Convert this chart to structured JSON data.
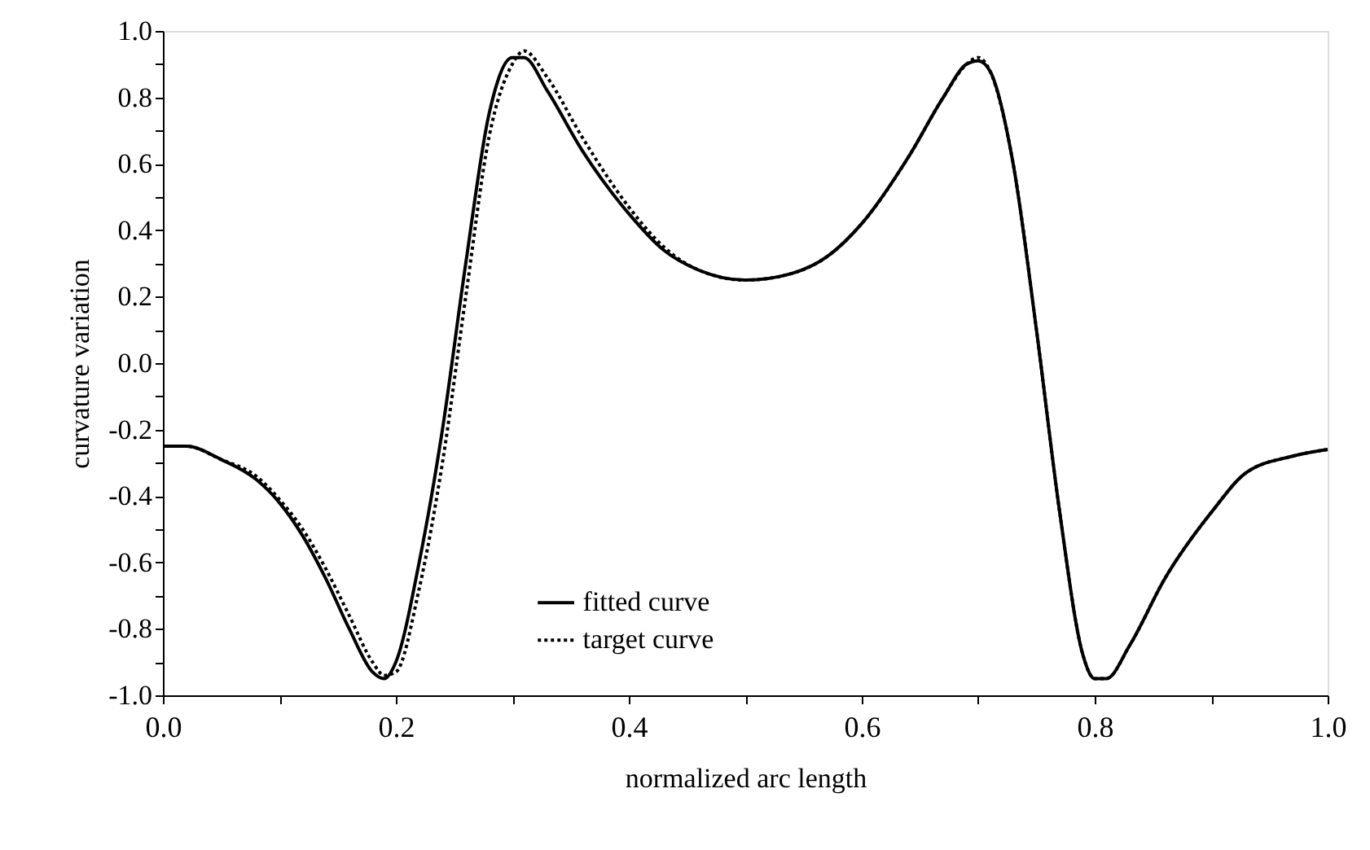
{
  "chart_data": {
    "type": "line",
    "xlabel": "normalized arc length",
    "ylabel": "curvature variation",
    "xlim": [
      0,
      1
    ],
    "ylim": [
      -1,
      1
    ],
    "xticks": [
      {
        "value": 0,
        "label": "0.0"
      },
      {
        "value": 0.1,
        "label": null
      },
      {
        "value": 0.2,
        "label": "0.2"
      },
      {
        "value": 0.3,
        "label": null
      },
      {
        "value": 0.4,
        "label": "0.4"
      },
      {
        "value": 0.5,
        "label": null
      },
      {
        "value": 0.6,
        "label": "0.6"
      },
      {
        "value": 0.7,
        "label": null
      },
      {
        "value": 0.8,
        "label": "0.8"
      },
      {
        "value": 0.9,
        "label": null
      },
      {
        "value": 1,
        "label": "1.0"
      }
    ],
    "yticks": [
      {
        "value": -1,
        "label": "-1.0"
      },
      {
        "value": -0.9,
        "label": null
      },
      {
        "value": -0.8,
        "label": "-0.8"
      },
      {
        "value": -0.7,
        "label": null
      },
      {
        "value": -0.6,
        "label": "-0.6"
      },
      {
        "value": -0.5,
        "label": null
      },
      {
        "value": -0.4,
        "label": "-0.4"
      },
      {
        "value": -0.3,
        "label": null
      },
      {
        "value": -0.2,
        "label": "-0.2"
      },
      {
        "value": -0.1,
        "label": null
      },
      {
        "value": 0,
        "label": "0.0"
      },
      {
        "value": 0.1,
        "label": null
      },
      {
        "value": 0.2,
        "label": "0.2"
      },
      {
        "value": 0.3,
        "label": null
      },
      {
        "value": 0.4,
        "label": "0.4"
      },
      {
        "value": 0.5,
        "label": null
      },
      {
        "value": 0.6,
        "label": "0.6"
      },
      {
        "value": 0.7,
        "label": null
      },
      {
        "value": 0.8,
        "label": "0.8"
      },
      {
        "value": 0.9,
        "label": null
      },
      {
        "value": 1,
        "label": "1.0"
      }
    ],
    "x": [
      0,
      0.02,
      0.05,
      0.08,
      0.1,
      0.12,
      0.14,
      0.16,
      0.18,
      0.19,
      0.2,
      0.22,
      0.24,
      0.26,
      0.28,
      0.3,
      0.31,
      0.33,
      0.36,
      0.4,
      0.43,
      0.46,
      0.5,
      0.54,
      0.57,
      0.6,
      0.64,
      0.67,
      0.69,
      0.7,
      0.71,
      0.73,
      0.75,
      0.77,
      0.79,
      0.8,
      0.81,
      0.83,
      0.86,
      0.9,
      0.93,
      0.97,
      1
    ],
    "series": [
      {
        "name": "fitted curve",
        "color": "#000000",
        "line_style": "solid",
        "values": [
          -0.25,
          -0.25,
          -0.29,
          -0.35,
          -0.42,
          -0.52,
          -0.65,
          -0.8,
          -0.93,
          -0.95,
          -0.9,
          -0.6,
          -0.2,
          0.3,
          0.75,
          0.92,
          0.92,
          0.82,
          0.64,
          0.45,
          0.34,
          0.28,
          0.25,
          0.27,
          0.32,
          0.42,
          0.62,
          0.8,
          0.9,
          0.91,
          0.88,
          0.6,
          0.1,
          -0.45,
          -0.88,
          -0.95,
          -0.95,
          -0.85,
          -0.65,
          -0.45,
          -0.33,
          -0.28,
          -0.26
        ]
      },
      {
        "name": "target curve",
        "color": "#000000",
        "line_style": "dotted",
        "values": [
          -0.25,
          -0.25,
          -0.29,
          -0.34,
          -0.41,
          -0.5,
          -0.62,
          -0.76,
          -0.9,
          -0.94,
          -0.93,
          -0.68,
          -0.3,
          0.2,
          0.68,
          0.9,
          0.94,
          0.86,
          0.68,
          0.47,
          0.35,
          0.28,
          0.25,
          0.27,
          0.32,
          0.42,
          0.62,
          0.8,
          0.9,
          0.92,
          0.88,
          0.6,
          0.1,
          -0.45,
          -0.88,
          -0.95,
          -0.95,
          -0.85,
          -0.65,
          -0.45,
          -0.33,
          -0.28,
          -0.26
        ]
      }
    ],
    "legend": "bottom",
    "marker": "none",
    "grid": false
  }
}
